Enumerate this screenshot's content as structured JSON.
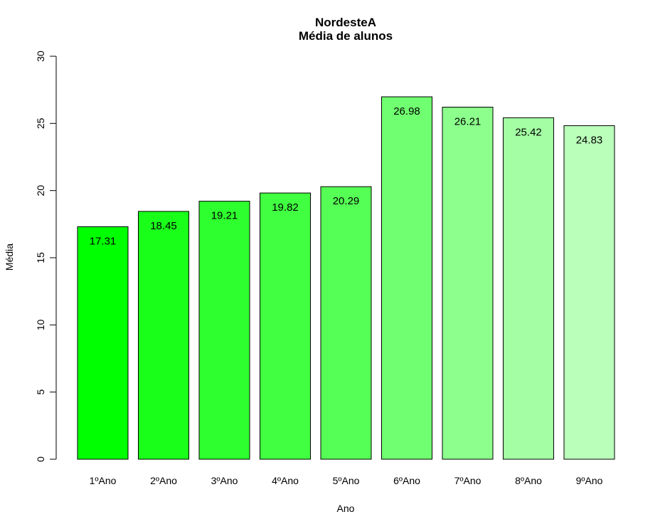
{
  "chart_data": {
    "type": "bar",
    "title": "NordesteA",
    "subtitle": "Média de alunos",
    "xlabel": "Ano",
    "ylabel": "Média",
    "categories": [
      "1ºAno",
      "2ºAno",
      "3ºAno",
      "4ºAno",
      "5ºAno",
      "6ºAno",
      "7ºAno",
      "8ºAno",
      "9ºAno"
    ],
    "values": [
      17.31,
      18.45,
      19.21,
      19.82,
      20.29,
      26.98,
      26.21,
      25.42,
      24.83
    ],
    "value_labels": [
      "17.31",
      "18.45",
      "19.21",
      "19.82",
      "20.29",
      "26.98",
      "26.21",
      "25.42",
      "24.83"
    ],
    "colors": [
      "#00FF00",
      "#1AFF1A",
      "#2EFF2E",
      "#41FF41",
      "#55FF55",
      "#70FF70",
      "#8CFF8C",
      "#A4FFA4",
      "#BAFFBA"
    ],
    "ylim": [
      0,
      30
    ],
    "yticks": [
      0,
      5,
      10,
      15,
      20,
      25,
      30
    ],
    "ytick_labels": [
      "0",
      "5",
      "10",
      "15",
      "20",
      "25",
      "30"
    ],
    "grid": false,
    "legend": "none"
  }
}
